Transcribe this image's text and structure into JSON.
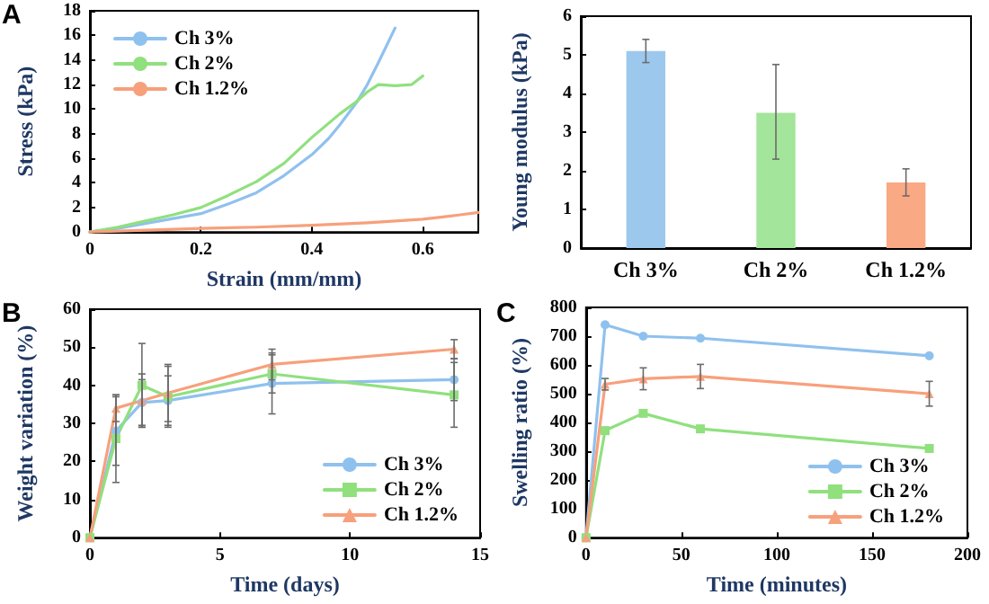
{
  "chart_data": [
    {
      "type": "line",
      "xlabel": "Strain (mm/mm)",
      "ylabel": "Stress (kPa)",
      "annotations": [
        "A"
      ],
      "xlim": [
        0,
        0.7
      ],
      "xticks": [
        0,
        0.2,
        0.4,
        0.6
      ],
      "ylim": [
        0,
        18
      ],
      "yticks": [
        0,
        2,
        4,
        6,
        8,
        10,
        12,
        14,
        16,
        18
      ],
      "grid": false,
      "legend": "top left",
      "marker": "none",
      "series": [
        {
          "name": "Ch 3%",
          "color": "#8fc1ee",
          "x": [
            0,
            0.05,
            0.1,
            0.15,
            0.2,
            0.25,
            0.3,
            0.35,
            0.4,
            0.43,
            0.45,
            0.48,
            0.5,
            0.52,
            0.55
          ],
          "values": [
            0,
            0.3,
            0.7,
            1.1,
            1.5,
            2.3,
            3.2,
            4.6,
            6.3,
            7.6,
            8.7,
            10.5,
            12,
            13.8,
            16.6
          ]
        },
        {
          "name": "Ch 2%",
          "color": "#90e07e",
          "x": [
            0,
            0.05,
            0.1,
            0.15,
            0.2,
            0.25,
            0.3,
            0.35,
            0.4,
            0.45,
            0.48,
            0.5,
            0.52,
            0.55,
            0.58,
            0.6
          ],
          "values": [
            0,
            0.4,
            0.9,
            1.4,
            2,
            3,
            4.1,
            5.6,
            7.7,
            9.6,
            10.6,
            11.4,
            12,
            11.9,
            12,
            12.7
          ]
        },
        {
          "name": "Ch 1.2%",
          "color": "#f7a07c",
          "x": [
            0,
            0.1,
            0.2,
            0.3,
            0.4,
            0.5,
            0.6,
            0.65,
            0.7
          ],
          "values": [
            0,
            0.15,
            0.3,
            0.4,
            0.55,
            0.75,
            1.05,
            1.3,
            1.6
          ]
        }
      ]
    },
    {
      "type": "bar",
      "ylabel": "Young modulus (kPa)",
      "categories": [
        "Ch 3%",
        "Ch 2%",
        "Ch 1.2%"
      ],
      "values": [
        5.1,
        3.5,
        1.7
      ],
      "colors": [
        "#9dc8ee",
        "#a3e59a",
        "#f9a984"
      ],
      "errors": [
        [
          4.8,
          5.4
        ],
        [
          2.3,
          4.75
        ],
        [
          1.35,
          2.05
        ]
      ],
      "ylim": [
        0,
        6
      ],
      "yticks": [
        0,
        1,
        2,
        3,
        4,
        5,
        6
      ],
      "grid": false,
      "legend": false
    },
    {
      "type": "line",
      "xlabel": "Time (days)",
      "ylabel": "Weight variation (%)",
      "annotations": [
        "B"
      ],
      "x": [
        0,
        1,
        2,
        3,
        7,
        14
      ],
      "xlim": [
        0,
        15
      ],
      "xticks": [
        0,
        5,
        10,
        15
      ],
      "ylim": [
        0,
        60
      ],
      "yticks": [
        0,
        10,
        20,
        30,
        40,
        50,
        60
      ],
      "grid": false,
      "legend": "bottom right",
      "series": [
        {
          "name": "Ch 3%",
          "color": "#8fc1ee",
          "marker": "circle",
          "values": [
            0,
            28,
            35.5,
            36,
            40.5,
            41.5
          ],
          "errors": [
            null,
            9,
            6,
            6.5,
            8,
            5.5
          ]
        },
        {
          "name": "Ch 2%",
          "color": "#90e07e",
          "marker": "square",
          "values": [
            0,
            26,
            40,
            37,
            43,
            37.5
          ],
          "errors": [
            null,
            11.5,
            11,
            8,
            5,
            8.5
          ]
        },
        {
          "name": "Ch 1.2%",
          "color": "#f7a07c",
          "marker": "triangle",
          "values": [
            0,
            34,
            36,
            38,
            45.5,
            49.5
          ],
          "errors": [
            null,
            3.5,
            7,
            7.5,
            4,
            2.5
          ]
        }
      ]
    },
    {
      "type": "line",
      "xlabel": "Time (minutes)",
      "ylabel": "Swelling ratio (%)",
      "annotations": [
        "C"
      ],
      "x": [
        0,
        10,
        30,
        60,
        180
      ],
      "xlim": [
        0,
        200
      ],
      "xticks": [
        0,
        50,
        100,
        150,
        200
      ],
      "ylim": [
        0,
        800
      ],
      "yticks": [
        0,
        100,
        200,
        300,
        400,
        500,
        600,
        700,
        800
      ],
      "grid": false,
      "legend": "bottom right",
      "series": [
        {
          "name": "Ch 3%",
          "color": "#8fc1ee",
          "marker": "circle",
          "values": [
            0,
            740,
            700,
            693,
            632
          ]
        },
        {
          "name": "Ch 2%",
          "color": "#90e07e",
          "marker": "square",
          "values": [
            0,
            372,
            432,
            378,
            310
          ]
        },
        {
          "name": "Ch 1.2%",
          "color": "#f7a07c",
          "marker": "triangle",
          "values": [
            0,
            533,
            552,
            560,
            500
          ],
          "errors": [
            null,
            20,
            38,
            42,
            43
          ]
        }
      ]
    }
  ]
}
